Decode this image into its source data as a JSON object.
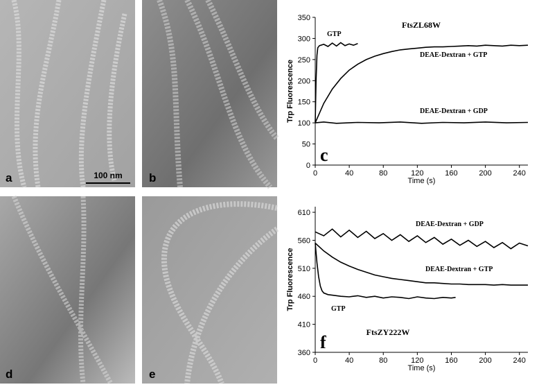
{
  "panels": [
    {
      "label": "a"
    },
    {
      "label": "b"
    },
    {
      "label": "d"
    },
    {
      "label": "e"
    }
  ],
  "scale_bar": "100 nm",
  "chart_data": [
    {
      "type": "line",
      "title": "FtsZL68W",
      "panel_label": "c",
      "y_label": "Trp Fluorescence",
      "x_label": "Time (s)",
      "xlim": [
        0,
        250
      ],
      "xticks": [
        0,
        40,
        80,
        120,
        160,
        200,
        240
      ],
      "ylim": [
        0,
        350
      ],
      "yticks": [
        0,
        50,
        100,
        150,
        200,
        250,
        300,
        350
      ],
      "series": [
        {
          "name": "GTP",
          "color": "#000000",
          "x": [
            0,
            1,
            2,
            3,
            5,
            10,
            15,
            20,
            25,
            30,
            35,
            40,
            45,
            50
          ],
          "values": [
            100,
            200,
            260,
            278,
            283,
            286,
            281,
            289,
            282,
            290,
            283,
            287,
            284,
            288
          ]
        },
        {
          "name": "DEAE-Dextran + GTP",
          "color": "#000000",
          "x": [
            0,
            10,
            20,
            30,
            40,
            50,
            60,
            70,
            80,
            90,
            100,
            110,
            120,
            130,
            140,
            150,
            160,
            170,
            180,
            190,
            200,
            210,
            220,
            230,
            240,
            250
          ],
          "values": [
            100,
            146,
            180,
            205,
            225,
            239,
            250,
            258,
            264,
            269,
            273,
            275,
            277,
            279,
            280,
            280,
            281,
            282,
            283,
            282,
            284,
            283,
            282,
            284,
            283,
            284
          ]
        },
        {
          "name": "DEAE-Dextran + GDP",
          "color": "#000000",
          "x": [
            0,
            10,
            25,
            50,
            75,
            100,
            125,
            150,
            175,
            200,
            225,
            250
          ],
          "values": [
            100,
            102,
            99,
            101,
            100,
            102,
            99,
            101,
            100,
            102,
            100,
            101
          ]
        }
      ]
    },
    {
      "type": "line",
      "title": "FtsZY222W",
      "panel_label": "f",
      "y_label": "Trp Fluorescence",
      "x_label": "Time (s)",
      "xlim": [
        0,
        250
      ],
      "xticks": [
        0,
        40,
        80,
        120,
        160,
        200,
        240
      ],
      "ylim": [
        360,
        620
      ],
      "yticks": [
        360,
        410,
        460,
        510,
        560,
        610
      ],
      "series": [
        {
          "name": "DEAE-Dextran + GDP",
          "color": "#000000",
          "x": [
            0,
            10,
            20,
            30,
            40,
            50,
            60,
            70,
            80,
            90,
            100,
            110,
            120,
            130,
            140,
            150,
            160,
            170,
            180,
            190,
            200,
            210,
            220,
            230,
            240,
            250
          ],
          "values": [
            575,
            568,
            580,
            566,
            578,
            565,
            576,
            563,
            572,
            560,
            570,
            558,
            568,
            556,
            565,
            553,
            562,
            551,
            560,
            549,
            558,
            547,
            556,
            545,
            555,
            550
          ]
        },
        {
          "name": "DEAE-Dextran + GTP",
          "color": "#000000",
          "x": [
            0,
            10,
            20,
            30,
            40,
            50,
            60,
            70,
            80,
            90,
            100,
            110,
            120,
            130,
            140,
            150,
            160,
            170,
            180,
            190,
            200,
            210,
            220,
            230,
            240,
            250
          ],
          "values": [
            555,
            541,
            530,
            521,
            514,
            508,
            503,
            498,
            495,
            492,
            490,
            488,
            486,
            484,
            484,
            483,
            482,
            482,
            481,
            481,
            481,
            480,
            481,
            480,
            480,
            480
          ]
        },
        {
          "name": "GTP",
          "color": "#000000",
          "x": [
            0,
            2,
            4,
            6,
            8,
            10,
            15,
            20,
            30,
            40,
            50,
            60,
            70,
            80,
            90,
            100,
            110,
            120,
            130,
            140,
            150,
            160,
            165
          ],
          "values": [
            555,
            520,
            495,
            478,
            470,
            466,
            463,
            462,
            460,
            459,
            461,
            458,
            460,
            457,
            459,
            458,
            456,
            459,
            457,
            456,
            458,
            457,
            458
          ]
        }
      ]
    }
  ]
}
